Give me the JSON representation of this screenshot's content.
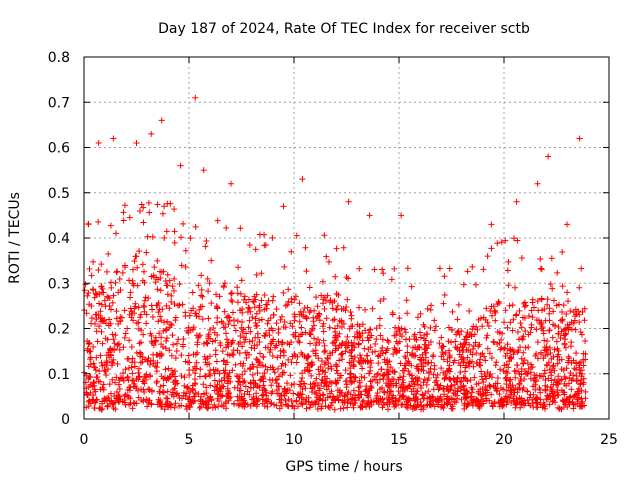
{
  "chart_data": {
    "type": "scatter",
    "title": "Day 187 of 2024, Rate Of TEC Index for receiver sctb",
    "xlabel": "GPS time / hours",
    "ylabel": "ROTI / TECUs",
    "xlim": [
      0,
      25
    ],
    "ylim": [
      0,
      0.8
    ],
    "x_ticks": [
      0,
      5,
      10,
      15,
      20,
      25
    ],
    "x_tick_labels": [
      "0",
      "5",
      "10",
      "15",
      "20",
      "25"
    ],
    "y_ticks": [
      0,
      0.1,
      0.2,
      0.3,
      0.4,
      0.5,
      0.6,
      0.7,
      0.8
    ],
    "y_tick_labels": [
      "0",
      "0.1",
      "0.2",
      "0.3",
      "0.4",
      "0.5",
      "0.6",
      "0.7",
      "0.8"
    ],
    "grid": true,
    "marker": "plus",
    "color": "#ff0000",
    "series": [
      {
        "name": "ROTI",
        "description_of_distribution": "dense band mostly between 0.02 and 0.35 TECU/min across 0-24 h, with sparse outliers",
        "notable_points": [
          {
            "x": 0.7,
            "y": 0.61
          },
          {
            "x": 1.4,
            "y": 0.62
          },
          {
            "x": 2.5,
            "y": 0.61
          },
          {
            "x": 3.2,
            "y": 0.63
          },
          {
            "x": 3.7,
            "y": 0.66
          },
          {
            "x": 4.6,
            "y": 0.56
          },
          {
            "x": 5.3,
            "y": 0.71
          },
          {
            "x": 5.7,
            "y": 0.55
          },
          {
            "x": 7.0,
            "y": 0.52
          },
          {
            "x": 9.5,
            "y": 0.47
          },
          {
            "x": 10.4,
            "y": 0.53
          },
          {
            "x": 12.6,
            "y": 0.48
          },
          {
            "x": 13.6,
            "y": 0.45
          },
          {
            "x": 15.1,
            "y": 0.45
          },
          {
            "x": 19.4,
            "y": 0.43
          },
          {
            "x": 20.6,
            "y": 0.48
          },
          {
            "x": 21.6,
            "y": 0.52
          },
          {
            "x": 22.1,
            "y": 0.58
          },
          {
            "x": 23.0,
            "y": 0.43
          },
          {
            "x": 23.6,
            "y": 0.62
          }
        ]
      }
    ]
  }
}
